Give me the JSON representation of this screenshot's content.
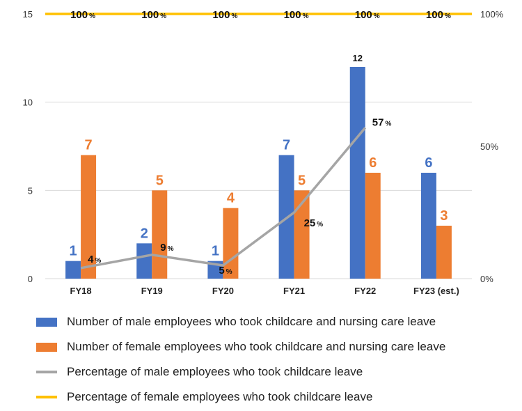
{
  "chart_data": {
    "type": "bar",
    "categories": [
      "FY18",
      "FY19",
      "FY20",
      "FY21",
      "FY22",
      "FY23 (est.)"
    ],
    "y_left": {
      "ylim": [
        0,
        15
      ],
      "ticks": [
        "0",
        "5",
        "10",
        "15"
      ]
    },
    "y_right": {
      "ylim": [
        0,
        100
      ],
      "ticks": [
        "0%",
        "50%",
        "100%"
      ]
    },
    "grid": true,
    "legend_position": "bottom",
    "series": [
      {
        "name": "Number of male employees who took childcare and nursing care leave",
        "kind": "bar",
        "axis": "left",
        "color": "#4472C4",
        "label_color": "#4472C4",
        "values": [
          1,
          2,
          1,
          7,
          12,
          6
        ],
        "labels": [
          "1",
          "2",
          "1",
          "7",
          "12",
          "6"
        ]
      },
      {
        "name": "Number of female employees who took childcare and nursing care leave",
        "kind": "bar",
        "axis": "left",
        "color": "#ED7D31",
        "label_color": "#ED7D31",
        "values": [
          7,
          5,
          4,
          5,
          6,
          3
        ],
        "labels": [
          "7",
          "5",
          "4",
          "5",
          "6",
          "3"
        ]
      },
      {
        "name": "Percentage of male employees who took childcare leave",
        "kind": "line",
        "axis": "right",
        "color": "#A5A5A5",
        "values": [
          4,
          9,
          5,
          25,
          57,
          null
        ],
        "labels": [
          "4",
          "9",
          "5",
          "25",
          "57",
          ""
        ],
        "unit": "%"
      },
      {
        "name": "Percentage of female employees who took childcare leave",
        "kind": "line",
        "axis": "right",
        "color": "#FFC000",
        "values": [
          100,
          100,
          100,
          100,
          100,
          100
        ],
        "labels": [
          "100",
          "100",
          "100",
          "100",
          "100",
          "100"
        ],
        "unit": "%"
      }
    ]
  }
}
